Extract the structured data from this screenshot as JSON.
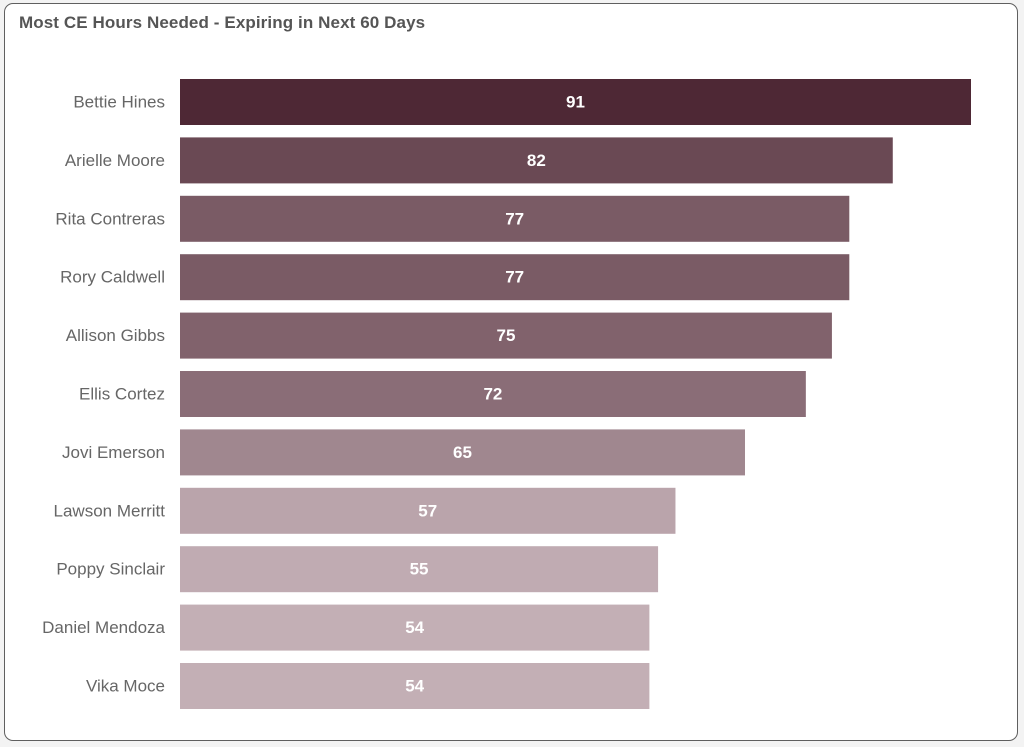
{
  "chart_data": {
    "type": "bar",
    "orientation": "horizontal",
    "title": "Most CE Hours Needed - Expiring in Next 60 Days",
    "categories": [
      "Bettie Hines",
      "Arielle Moore",
      "Rita Contreras",
      "Rory Caldwell",
      "Allison Gibbs",
      "Ellis Cortez",
      "Jovi Emerson",
      "Lawson Merritt",
      "Poppy Sinclair",
      "Daniel Mendoza",
      "Vika Moce"
    ],
    "values": [
      91,
      82,
      77,
      77,
      75,
      72,
      65,
      57,
      55,
      54,
      54
    ],
    "xlim": [
      0,
      91
    ],
    "grid": false,
    "legend": "none",
    "data_labels": "center",
    "colors": {
      "max": "#4e2835",
      "min": "#c3afb5",
      "label": "#666666",
      "title": "#555555"
    }
  }
}
